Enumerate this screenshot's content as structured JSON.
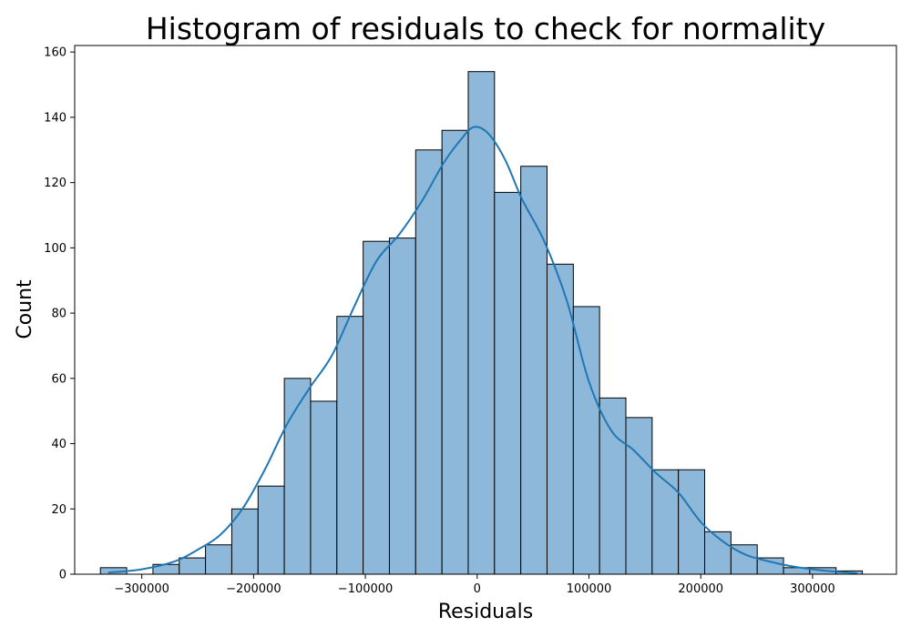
{
  "chart_data": {
    "type": "bar",
    "title": "Histogram of residuals to check for normality",
    "xlabel": "Residuals",
    "ylabel": "Count",
    "xlim": [
      -360000,
      375000
    ],
    "ylim": [
      0,
      162
    ],
    "x_ticks": [
      -300000,
      -200000,
      -100000,
      0,
      100000,
      200000,
      300000
    ],
    "x_tick_labels": [
      "−300000",
      "−200000",
      "−100000",
      "0",
      "100000",
      "200000",
      "300000"
    ],
    "y_ticks": [
      0,
      20,
      40,
      60,
      80,
      100,
      120,
      140,
      160
    ],
    "y_tick_labels": [
      "0",
      "20",
      "40",
      "60",
      "80",
      "100",
      "120",
      "140",
      "160"
    ],
    "grid": false,
    "bin_start": -337000,
    "bin_width": 23500,
    "values": [
      2,
      0,
      3,
      5,
      9,
      20,
      27,
      60,
      53,
      79,
      102,
      103,
      130,
      136,
      154,
      117,
      125,
      95,
      82,
      54,
      48,
      32,
      32,
      13,
      9,
      5,
      2,
      2,
      1
    ],
    "kde": {
      "x": [
        -330000,
        -300000,
        -270000,
        -250000,
        -230000,
        -210000,
        -190000,
        -170000,
        -150000,
        -130000,
        -110000,
        -90000,
        -70000,
        -50000,
        -30000,
        -15000,
        -3000,
        10000,
        25000,
        40000,
        60000,
        80000,
        100000,
        120000,
        140000,
        160000,
        180000,
        200000,
        220000,
        240000,
        260000,
        280000,
        300000,
        320000,
        340000
      ],
      "y": [
        0.5,
        1.5,
        4,
        7.5,
        12,
        20,
        32,
        46,
        57,
        67,
        82,
        96,
        104,
        114,
        126,
        133,
        137,
        135,
        127,
        115,
        102,
        84,
        59,
        44,
        38,
        31,
        25,
        16,
        10,
        6,
        4,
        2.5,
        1.5,
        0.8,
        0.3
      ]
    },
    "colors": {
      "bar_fill": "#8db8d9",
      "bar_edge": "#000000",
      "kde_line": "#1f77b4"
    }
  }
}
